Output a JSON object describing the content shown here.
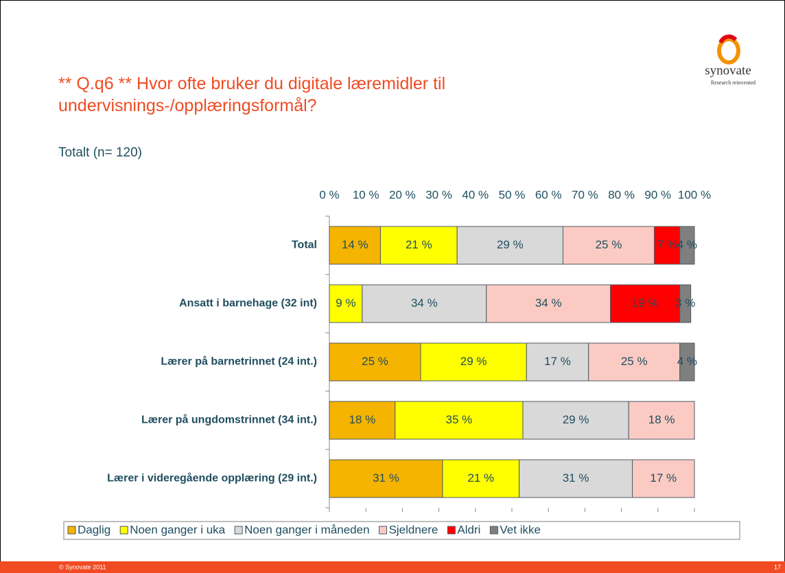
{
  "chart_data": {
    "type": "stacked-barh",
    "title": "** Q.q6 ** Hvor ofte bruker du digitale læremidler til undervisnings-/opplæringsformål?",
    "subtitle": "Totalt (n= 120)",
    "categories": [
      "Total",
      "Ansatt i barnehage (32 int)",
      "Lærer på barnetrinnet (24 int.)",
      "Lærer på ungdomstrinnet (34 int.)",
      "Lærer i videregående opplæring (29 int.)"
    ],
    "series": [
      {
        "name": "Daglig",
        "color": "#f5b400",
        "values": [
          14,
          null,
          25,
          18,
          31
        ],
        "value_labels": [
          "14 %",
          null,
          "25 %",
          "18 %",
          "31 %"
        ]
      },
      {
        "name": "Noen ganger i uka",
        "color": "#ffff00",
        "values": [
          21,
          9,
          29,
          35,
          21
        ],
        "value_labels": [
          "21 %",
          "9 %",
          "29 %",
          "35 %",
          "21 %"
        ]
      },
      {
        "name": "Noen ganger i måneden",
        "color": "#d9d9d9",
        "values": [
          29,
          34,
          17,
          29,
          31
        ],
        "value_labels": [
          "29 %",
          "34 %",
          "17 %",
          "29 %",
          "31 %"
        ]
      },
      {
        "name": "Sjeldnere",
        "color": "#fbcbc3",
        "values": [
          25,
          34,
          25,
          18,
          17
        ],
        "value_labels": [
          "25 %",
          "34 %",
          "25 %",
          "18 %",
          "17 %"
        ]
      },
      {
        "name": "Aldri",
        "color": "#ff0000",
        "values": [
          7,
          19,
          null,
          null,
          null
        ],
        "value_labels": [
          "7 %",
          "19 %",
          null,
          null,
          null
        ]
      },
      {
        "name": "Vet ikke",
        "color": "#7f7f7f",
        "values": [
          4,
          3,
          4,
          null,
          null
        ],
        "value_labels": [
          "4 %",
          "3 %",
          "4 %",
          null,
          null
        ]
      }
    ],
    "xlim": [
      0,
      100
    ],
    "xticks": [
      {
        "value": 0,
        "label": "0 %"
      },
      {
        "value": 10,
        "label": "10 %"
      },
      {
        "value": 20,
        "label": "20 %"
      },
      {
        "value": 30,
        "label": "30 %"
      },
      {
        "value": 40,
        "label": "40 %"
      },
      {
        "value": 50,
        "label": "50 %"
      },
      {
        "value": 60,
        "label": "60 %"
      },
      {
        "value": 70,
        "label": "70 %"
      },
      {
        "value": 80,
        "label": "80 %"
      },
      {
        "value": 90,
        "label": "90 %"
      },
      {
        "value": 100,
        "label": "100 %"
      }
    ],
    "legend": "bottom"
  },
  "logo": {
    "name": "synovate",
    "tagline": "Research reinvented"
  },
  "footer": {
    "copyright": "© Synovate 2011",
    "page": "17"
  }
}
